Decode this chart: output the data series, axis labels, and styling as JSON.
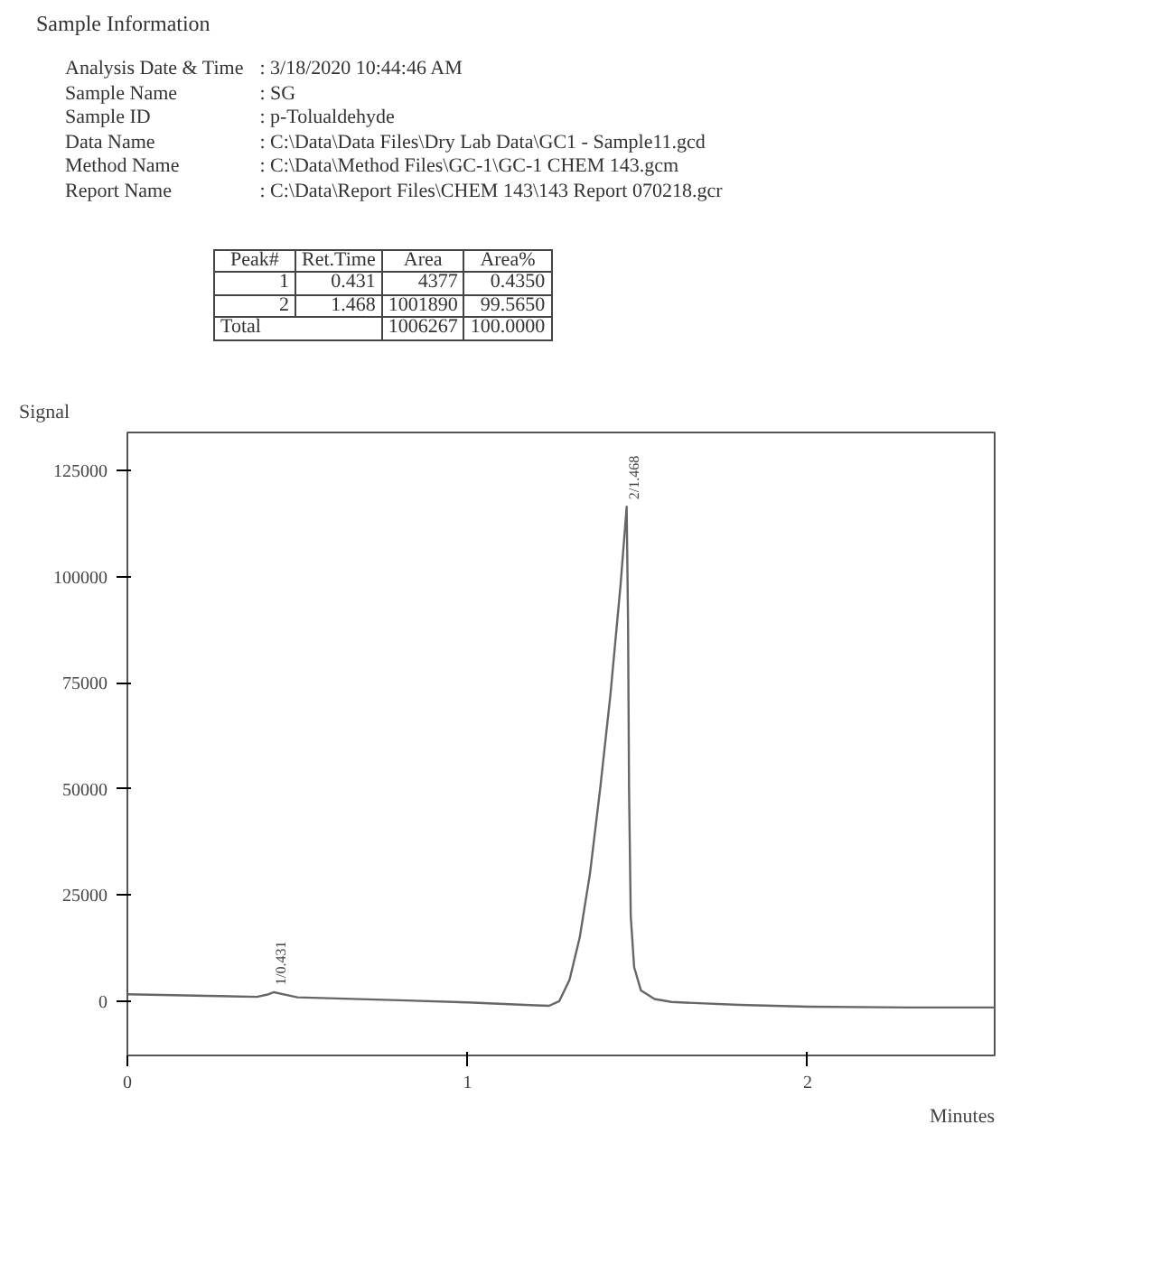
{
  "chart_data": {
    "type": "line",
    "title": "Sample Information",
    "xlabel": "Minutes",
    "ylabel": "Signal",
    "annotations": [
      "Analysis Date & Time : 3/18/2020 10:44:46 AM",
      "Sample Name : SG",
      "Sample ID : p-Tolualdehyde",
      "Data Name : C:\\Data\\Data Files\\Dry Lab Data\\GC1 - Sample11.gcd",
      "Method Name : C:\\Data\\Method Files\\GC-1\\GC-1 CHEM 143.gcm",
      "Report Name : C:\\Data\\Report Files\\CHEM 143\\143 Report 070218.gcr",
      "Peak#",
      "Ret.Time",
      "Area",
      "Area%",
      "1",
      "0.431",
      "4377",
      "0.4350",
      "2",
      "1.468",
      "1001890",
      "99.5650",
      "Total",
      "1006267",
      "100.0000",
      {
        "text": "1/0.431",
        "x": 0.431,
        "y": 2100
      },
      {
        "text": "2/1.468",
        "x": 1.468,
        "y": 116500
      }
    ],
    "x": [
      0,
      0.2,
      0.38,
      0.41,
      0.431,
      0.46,
      0.5,
      0.8,
      1.0,
      1.2,
      1.24,
      1.27,
      1.3,
      1.33,
      1.36,
      1.39,
      1.42,
      1.45,
      1.468,
      1.472,
      1.475,
      1.48,
      1.49,
      1.51,
      1.55,
      1.6,
      1.8,
      2.0,
      2.3,
      2.55
    ],
    "series": [
      {
        "color": "#666666",
        "values": [
          1600,
          1300,
          1000,
          1500,
          2100,
          1600,
          900,
          200,
          -300,
          -1000,
          -1100,
          0,
          5000,
          15000,
          30000,
          50000,
          72000,
          98000,
          116500,
          90000,
          50000,
          20000,
          8000,
          2500,
          500,
          -200,
          -900,
          -1300,
          -1500,
          -1500
        ]
      }
    ],
    "xlim": [
      0,
      2.55
    ],
    "ylim": [
      -12800,
      134000
    ],
    "xticks": [
      0,
      1,
      2
    ],
    "yticks": [
      0,
      25000,
      50000,
      75000,
      100000,
      125000
    ],
    "grid": false,
    "marker": "none",
    "line_style": "solid"
  }
}
